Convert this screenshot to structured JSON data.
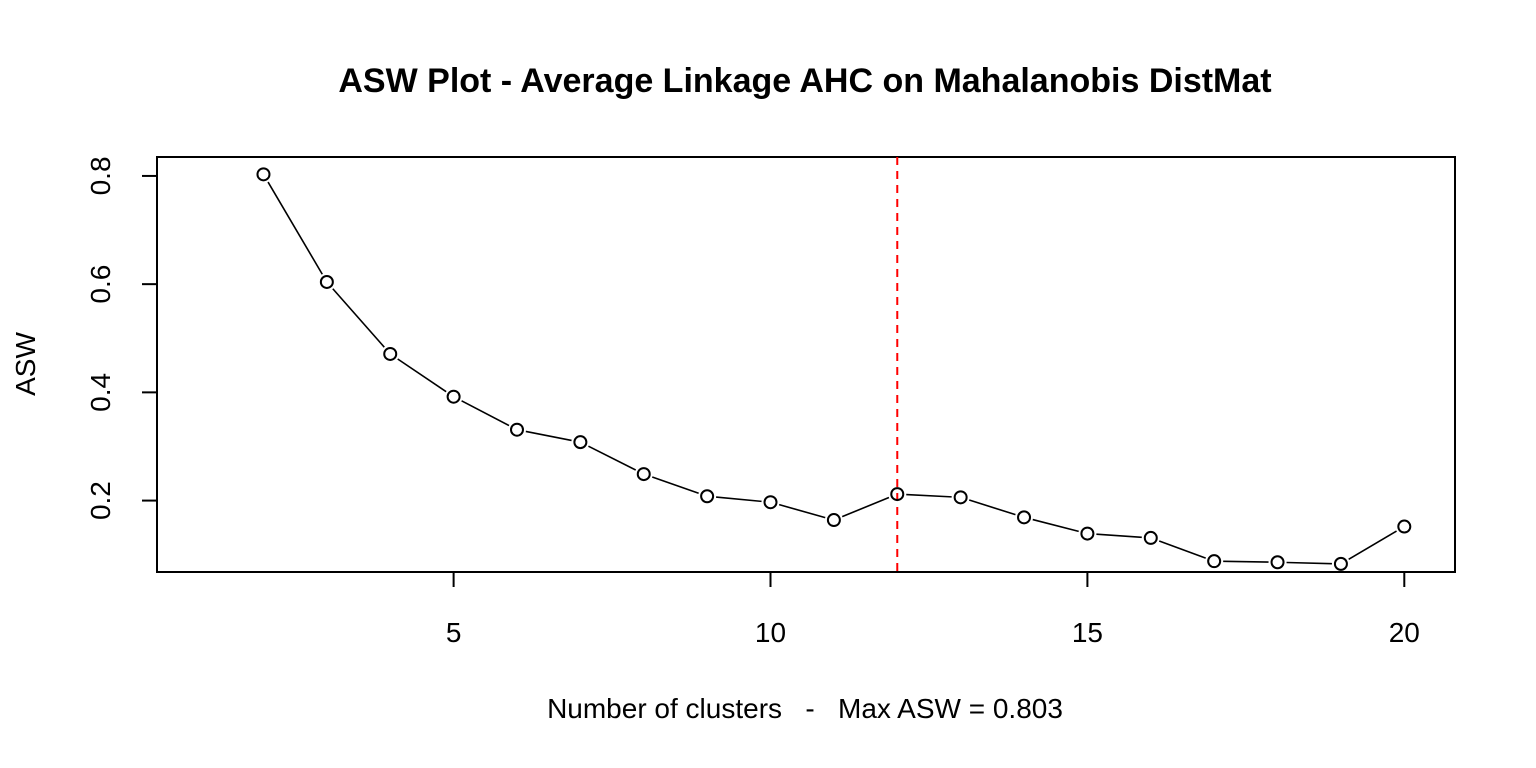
{
  "chart_data": {
    "type": "line",
    "title": "ASW Plot - Average Linkage AHC on Mahalanobis DistMat",
    "xlabel": "Number of clusters   -   Max ASW = 0.803",
    "ylabel": "ASW",
    "xlim": [
      0.32,
      20.8
    ],
    "ylim": [
      0.068,
      0.835
    ],
    "x_ticks": [
      5,
      10,
      15,
      20
    ],
    "y_ticks": [
      0.2,
      0.4,
      0.6,
      0.8
    ],
    "x_tick_labels": [
      "5",
      "10",
      "15",
      "20"
    ],
    "y_tick_labels": [
      "0.2",
      "0.4",
      "0.6",
      "0.8"
    ],
    "grid": false,
    "series": [
      {
        "x": [
          2,
          3,
          4,
          5,
          6,
          7,
          8,
          9,
          10,
          11,
          12,
          13,
          14,
          15,
          16,
          17,
          18,
          19,
          20
        ],
        "y": [
          0.803,
          0.604,
          0.471,
          0.392,
          0.331,
          0.308,
          0.249,
          0.208,
          0.197,
          0.164,
          0.212,
          0.206,
          0.169,
          0.139,
          0.131,
          0.088,
          0.086,
          0.083,
          0.152
        ],
        "color": "#000000",
        "marker": "open-circle"
      }
    ],
    "reference_line": {
      "orientation": "vertical",
      "x": 12,
      "color": "#ff0000",
      "style": "dashed"
    }
  }
}
